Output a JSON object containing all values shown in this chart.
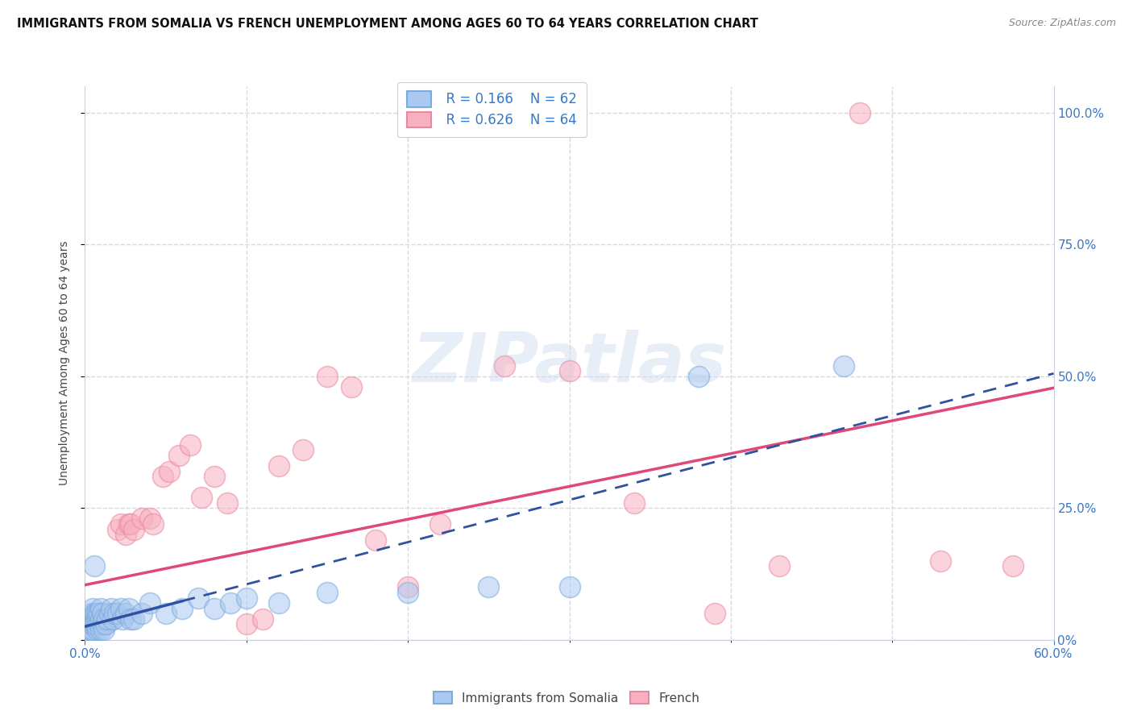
{
  "title": "IMMIGRANTS FROM SOMALIA VS FRENCH UNEMPLOYMENT AMONG AGES 60 TO 64 YEARS CORRELATION CHART",
  "source": "Source: ZipAtlas.com",
  "ylabel": "Unemployment Among Ages 60 to 64 years",
  "xlim": [
    0.0,
    0.6
  ],
  "ylim": [
    0.0,
    1.05
  ],
  "legend_somalia_R": "R = 0.166",
  "legend_somalia_N": "N = 62",
  "legend_french_R": "R = 0.626",
  "legend_french_N": "N = 64",
  "somalia_color": "#aac8f0",
  "somalia_edge_color": "#7aaade",
  "french_color": "#f8b0c0",
  "french_edge_color": "#e888a0",
  "somalia_trend_color": "#3050a0",
  "french_trend_color": "#e04878",
  "watermark_text": "ZIPatlas",
  "watermark_color": "#d0dff0",
  "background_color": "#ffffff",
  "grid_color": "#d8d8e0",
  "title_fontsize": 10.5,
  "label_fontsize": 10,
  "somalia_x": [
    0.001,
    0.001,
    0.002,
    0.002,
    0.002,
    0.003,
    0.003,
    0.003,
    0.003,
    0.004,
    0.004,
    0.004,
    0.005,
    0.005,
    0.005,
    0.005,
    0.006,
    0.006,
    0.006,
    0.007,
    0.007,
    0.007,
    0.008,
    0.008,
    0.008,
    0.009,
    0.009,
    0.01,
    0.01,
    0.01,
    0.011,
    0.011,
    0.012,
    0.012,
    0.013,
    0.014,
    0.015,
    0.016,
    0.017,
    0.018,
    0.02,
    0.022,
    0.023,
    0.025,
    0.027,
    0.028,
    0.03,
    0.035,
    0.04,
    0.05,
    0.06,
    0.07,
    0.08,
    0.09,
    0.1,
    0.12,
    0.15,
    0.2,
    0.25,
    0.3,
    0.38,
    0.47
  ],
  "somalia_y": [
    0.02,
    0.03,
    0.01,
    0.04,
    0.02,
    0.03,
    0.01,
    0.04,
    0.02,
    0.03,
    0.04,
    0.05,
    0.02,
    0.03,
    0.04,
    0.06,
    0.03,
    0.05,
    0.14,
    0.03,
    0.04,
    0.05,
    0.02,
    0.04,
    0.05,
    0.03,
    0.05,
    0.02,
    0.04,
    0.06,
    0.03,
    0.05,
    0.02,
    0.04,
    0.03,
    0.04,
    0.05,
    0.06,
    0.04,
    0.05,
    0.05,
    0.06,
    0.04,
    0.05,
    0.06,
    0.04,
    0.04,
    0.05,
    0.07,
    0.05,
    0.06,
    0.08,
    0.06,
    0.07,
    0.08,
    0.07,
    0.09,
    0.09,
    0.1,
    0.1,
    0.5,
    0.52
  ],
  "french_x": [
    0.001,
    0.001,
    0.002,
    0.002,
    0.002,
    0.003,
    0.003,
    0.003,
    0.004,
    0.004,
    0.004,
    0.005,
    0.005,
    0.005,
    0.006,
    0.006,
    0.006,
    0.007,
    0.007,
    0.008,
    0.008,
    0.009,
    0.009,
    0.01,
    0.01,
    0.011,
    0.012,
    0.013,
    0.015,
    0.017,
    0.018,
    0.02,
    0.022,
    0.025,
    0.027,
    0.028,
    0.03,
    0.035,
    0.04,
    0.042,
    0.048,
    0.052,
    0.058,
    0.065,
    0.072,
    0.08,
    0.088,
    0.1,
    0.11,
    0.12,
    0.135,
    0.15,
    0.165,
    0.18,
    0.2,
    0.22,
    0.26,
    0.3,
    0.34,
    0.39,
    0.43,
    0.48,
    0.53,
    0.575
  ],
  "french_y": [
    0.02,
    0.03,
    0.01,
    0.03,
    0.02,
    0.04,
    0.02,
    0.03,
    0.02,
    0.03,
    0.04,
    0.03,
    0.04,
    0.02,
    0.03,
    0.04,
    0.03,
    0.04,
    0.03,
    0.04,
    0.03,
    0.04,
    0.03,
    0.04,
    0.03,
    0.04,
    0.04,
    0.03,
    0.05,
    0.04,
    0.05,
    0.21,
    0.22,
    0.2,
    0.22,
    0.22,
    0.21,
    0.23,
    0.23,
    0.22,
    0.31,
    0.32,
    0.35,
    0.37,
    0.27,
    0.31,
    0.26,
    0.03,
    0.04,
    0.33,
    0.36,
    0.5,
    0.48,
    0.19,
    0.1,
    0.22,
    0.52,
    0.51,
    0.26,
    0.05,
    0.14,
    1.0,
    0.15,
    0.14
  ]
}
